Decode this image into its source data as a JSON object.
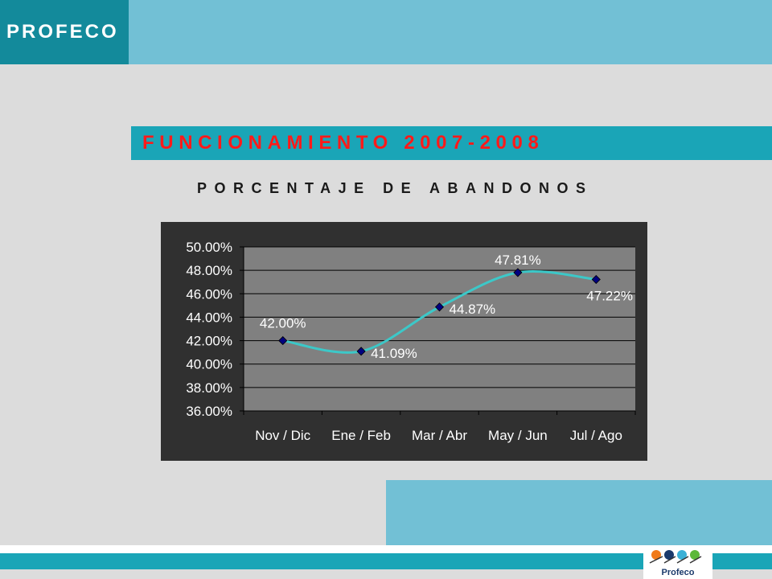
{
  "header": {
    "logo_text": "PROFECO"
  },
  "title": "FUNCIONAMIENTO 2007-2008",
  "subtitle": "PORCENTAJE DE ABANDONOS",
  "footer": {
    "logo_text": "Profeco"
  },
  "colors": {
    "chart_bg": "#303030",
    "plot_bg": "#808080",
    "line": "#3cc8c8",
    "marker": "#000080",
    "text": "#ffffff",
    "title_text": "#ff1a1a"
  },
  "chart_data": {
    "type": "line",
    "categories": [
      "Nov / Dic",
      "Ene / Feb",
      "Mar / Abr",
      "May / Jun",
      "Jul / Ago"
    ],
    "values": [
      42.0,
      41.09,
      44.87,
      47.81,
      47.22
    ],
    "data_labels": [
      "42.00%",
      "41.09%",
      "44.87%",
      "47.81%",
      "47.22%"
    ],
    "y_ticks": [
      "36.00%",
      "38.00%",
      "40.00%",
      "42.00%",
      "44.00%",
      "46.00%",
      "48.00%",
      "50.00%"
    ],
    "ylim": [
      36,
      50
    ],
    "grid": true,
    "legend": "none"
  }
}
